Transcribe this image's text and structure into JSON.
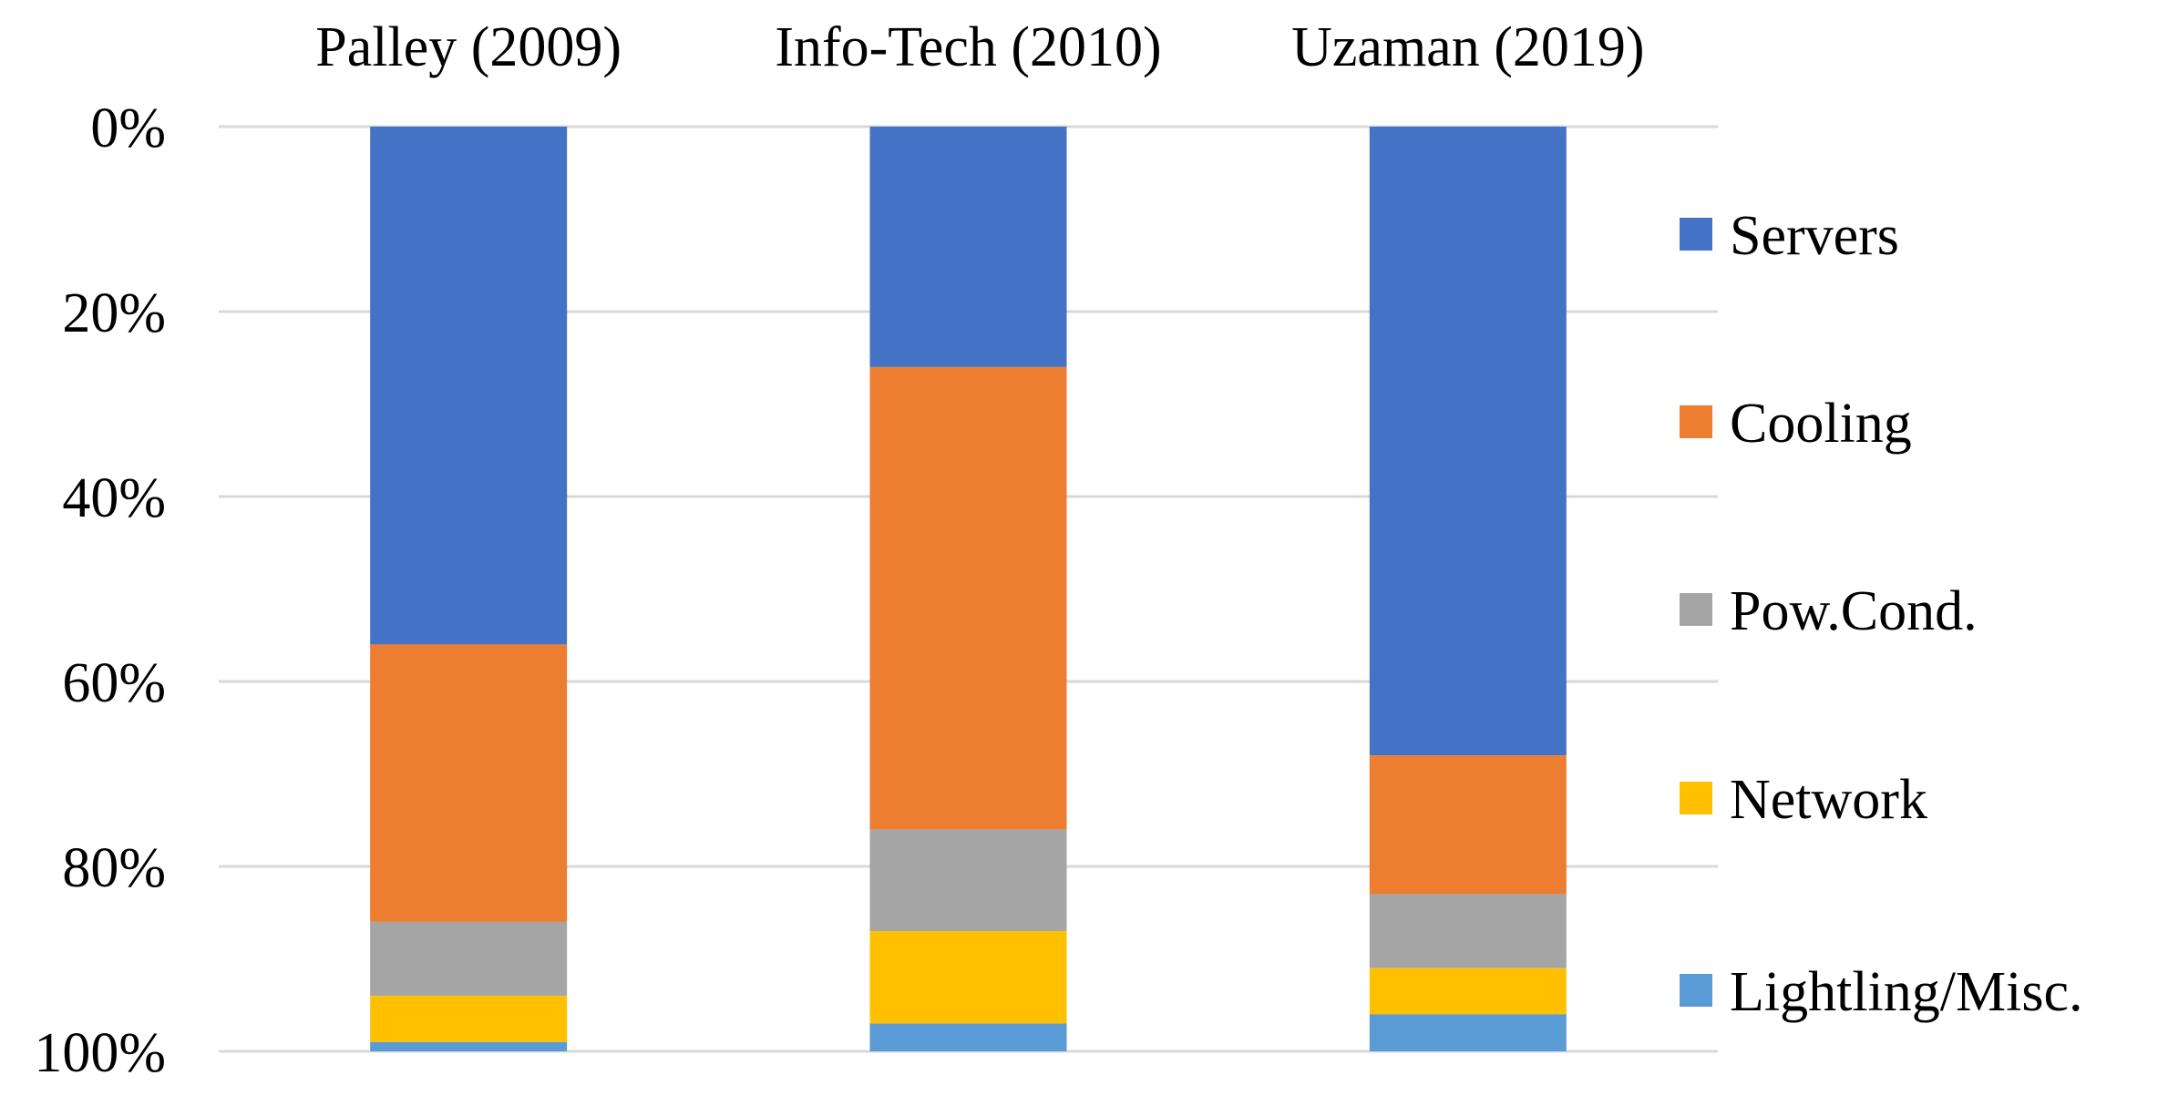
{
  "chart_data": {
    "type": "bar",
    "stacked": true,
    "orientation": "vertical",
    "y_axis_inverted": true,
    "categories": [
      "Palley (2009)",
      "Info-Tech (2010)",
      "Uzaman (2019)"
    ],
    "series": [
      {
        "name": "Servers",
        "color": "#4472C4",
        "values": [
          56,
          26,
          68
        ]
      },
      {
        "name": "Cooling",
        "color": "#ED7D31",
        "values": [
          30,
          50,
          15
        ]
      },
      {
        "name": "Pow.Cond.",
        "color": "#A5A5A5",
        "values": [
          8,
          11,
          8
        ]
      },
      {
        "name": "Network",
        "color": "#FFC000",
        "values": [
          5,
          10,
          5
        ]
      },
      {
        "name": "Lightling/Misc.",
        "color": "#5B9BD5",
        "values": [
          1,
          3,
          4
        ]
      }
    ],
    "ylim": [
      0,
      100
    ],
    "yticks": [
      "0%",
      "20%",
      "40%",
      "60%",
      "80%",
      "100%"
    ],
    "category_labels_position": "top",
    "grid": true,
    "legend": "right"
  }
}
